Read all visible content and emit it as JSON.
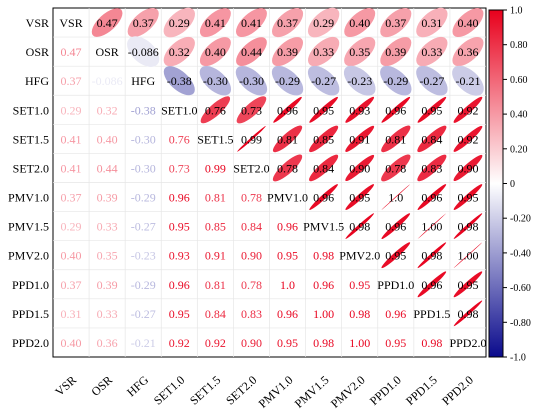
{
  "chart_data": {
    "type": "heatmap",
    "subtype": "correlation-matrix",
    "variables": [
      "VSR",
      "OSR",
      "HFG",
      "SET1.0",
      "SET1.5",
      "SET2.0",
      "PMV1.0",
      "PMV1.5",
      "PMV2.0",
      "PPD1.0",
      "PPD1.5",
      "PPD2.0"
    ],
    "upper_display": "ellipse",
    "lower_display": "number",
    "diagonal_display": "variable-name",
    "matrix": [
      [
        1,
        0.47,
        0.37,
        0.29,
        0.41,
        0.41,
        0.37,
        0.29,
        0.4,
        0.37,
        0.31,
        0.4
      ],
      [
        0.47,
        1,
        -0.086,
        0.32,
        0.4,
        0.44,
        0.39,
        0.33,
        0.35,
        0.39,
        0.33,
        0.36
      ],
      [
        0.37,
        -0.086,
        1,
        -0.38,
        -0.3,
        -0.3,
        -0.29,
        -0.27,
        -0.23,
        -0.29,
        -0.27,
        -0.21
      ],
      [
        0.29,
        0.32,
        -0.38,
        1,
        0.76,
        0.73,
        0.96,
        0.95,
        0.93,
        0.96,
        0.95,
        0.92
      ],
      [
        0.41,
        0.4,
        -0.3,
        0.76,
        1,
        0.99,
        0.81,
        0.85,
        0.91,
        0.81,
        0.84,
        0.92
      ],
      [
        0.41,
        0.44,
        -0.3,
        0.73,
        0.99,
        1,
        0.78,
        0.84,
        0.9,
        0.78,
        0.83,
        0.9
      ],
      [
        0.37,
        0.39,
        -0.29,
        0.96,
        0.81,
        0.78,
        1,
        0.96,
        0.95,
        1.0,
        0.96,
        0.95
      ],
      [
        0.29,
        0.33,
        -0.27,
        0.95,
        0.85,
        0.84,
        0.96,
        1,
        0.98,
        0.96,
        1.0,
        0.98
      ],
      [
        0.4,
        0.35,
        -0.23,
        0.93,
        0.91,
        0.9,
        0.95,
        0.98,
        1,
        0.95,
        0.98,
        1.0
      ],
      [
        0.37,
        0.39,
        -0.29,
        0.96,
        0.81,
        0.78,
        1.0,
        0.96,
        0.95,
        1,
        0.96,
        0.95
      ],
      [
        0.31,
        0.33,
        -0.27,
        0.95,
        0.84,
        0.83,
        0.96,
        1.0,
        0.98,
        0.96,
        1,
        0.98
      ],
      [
        0.4,
        0.36,
        -0.21,
        0.92,
        0.92,
        0.9,
        0.95,
        0.98,
        1.0,
        0.95,
        0.98,
        1
      ]
    ],
    "display_labels": [
      [
        "",
        "0.47",
        "0.37",
        "0.29",
        "0.41",
        "0.41",
        "0.37",
        "0.29",
        "0.40",
        "0.37",
        "0.31",
        "0.40"
      ],
      [
        "0.47",
        "",
        "-0.086",
        "0.32",
        "0.40",
        "0.44",
        "0.39",
        "0.33",
        "0.35",
        "0.39",
        "0.33",
        "0.36"
      ],
      [
        "0.37",
        "-0.086",
        "",
        "-0.38",
        "-0.30",
        "-0.30",
        "-0.29",
        "-0.27",
        "-0.23",
        "-0.29",
        "-0.27",
        "-0.21"
      ],
      [
        "0.29",
        "0.32",
        "-0.38",
        "",
        "0.76",
        "0.73",
        "0.96",
        "0.95",
        "0.93",
        "0.96",
        "0.95",
        "0.92"
      ],
      [
        "0.41",
        "0.40",
        "-0.30",
        "0.76",
        "",
        "0.99",
        "0.81",
        "0.85",
        "0.91",
        "0.81",
        "0.84",
        "0.92"
      ],
      [
        "0.41",
        "0.44",
        "-0.30",
        "0.73",
        "0.99",
        "",
        "0.78",
        "0.84",
        "0.90",
        "0.78",
        "0.83",
        "0.90"
      ],
      [
        "0.37",
        "0.39",
        "-0.29",
        "0.96",
        "0.81",
        "0.78",
        "",
        "0.96",
        "0.95",
        "1.0",
        "0.96",
        "0.95"
      ],
      [
        "0.29",
        "0.33",
        "-0.27",
        "0.95",
        "0.85",
        "0.84",
        "0.96",
        "",
        "0.98",
        "0.96",
        "1.00",
        "0.98"
      ],
      [
        "0.40",
        "0.35",
        "-0.23",
        "0.93",
        "0.91",
        "0.90",
        "0.95",
        "0.98",
        "",
        "0.95",
        "0.98",
        "1.00"
      ],
      [
        "0.37",
        "0.39",
        "-0.29",
        "0.96",
        "0.81",
        "0.78",
        "1.0",
        "0.96",
        "0.95",
        "",
        "0.96",
        "0.95"
      ],
      [
        "0.31",
        "0.33",
        "-0.27",
        "0.95",
        "0.84",
        "0.83",
        "0.96",
        "1.00",
        "0.98",
        "0.96",
        "",
        "0.98"
      ],
      [
        "0.40",
        "0.36",
        "-0.21",
        "0.92",
        "0.92",
        "0.90",
        "0.95",
        "0.98",
        "1.00",
        "0.95",
        "0.98",
        ""
      ]
    ],
    "colorbar": {
      "range": [
        -1.0,
        1.0
      ],
      "ticks": [
        "1.0",
        "0.80",
        "0.60",
        "0.40",
        "0.20",
        "0",
        "-0.20",
        "-0.40",
        "-0.60",
        "-0.80",
        "-1.0"
      ],
      "colors": {
        "negative": "#0a0a8c",
        "zero": "#ffffff",
        "positive": "#e8001c"
      }
    },
    "title": "",
    "xlabel": "",
    "ylabel": "",
    "grid": true
  }
}
